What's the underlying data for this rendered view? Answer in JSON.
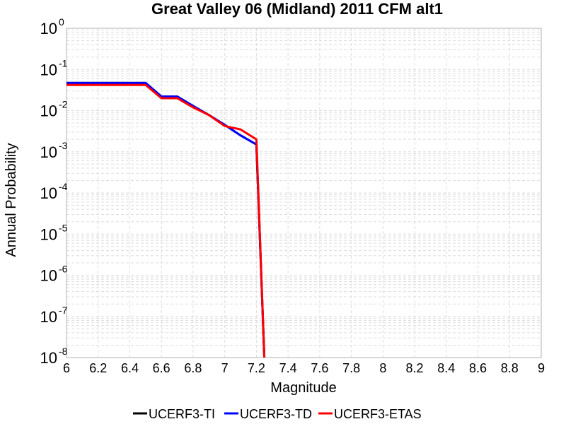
{
  "chart_data": {
    "type": "line",
    "title": "Great Valley 06 (Midland) 2011 CFM alt1",
    "xlabel": "Magnitude",
    "ylabel": "Annual Probability",
    "xlim": [
      6,
      9
    ],
    "ylim": [
      1e-08,
      1
    ],
    "yscale": "log",
    "grid": true,
    "legend_position": "bottom",
    "x_ticks": [
      "6",
      "6.2",
      "6.4",
      "6.6",
      "6.8",
      "7",
      "7.2",
      "7.4",
      "7.6",
      "7.8",
      "8",
      "8.2",
      "8.4",
      "8.6",
      "8.8",
      "9"
    ],
    "y_ticks": [
      {
        "base": "10",
        "exp": "0"
      },
      {
        "base": "10",
        "exp": "-1"
      },
      {
        "base": "10",
        "exp": "-2"
      },
      {
        "base": "10",
        "exp": "-3"
      },
      {
        "base": "10",
        "exp": "-4"
      },
      {
        "base": "10",
        "exp": "-5"
      },
      {
        "base": "10",
        "exp": "-6"
      },
      {
        "base": "10",
        "exp": "-7"
      },
      {
        "base": "10",
        "exp": "-8"
      }
    ],
    "series": [
      {
        "name": "UCERF3-TI",
        "color": "#000000",
        "x": [
          6.0,
          6.1,
          6.2,
          6.3,
          6.4,
          6.5,
          6.6,
          6.7,
          6.8,
          6.9,
          7.0,
          7.1,
          7.2,
          7.25
        ],
        "y": [
          0.047,
          0.047,
          0.047,
          0.047,
          0.047,
          0.047,
          0.022,
          0.022,
          0.013,
          0.0078,
          0.0045,
          0.0025,
          0.0015,
          1e-08
        ]
      },
      {
        "name": "UCERF3-TD",
        "color": "#0000ff",
        "x": [
          6.0,
          6.1,
          6.2,
          6.3,
          6.4,
          6.5,
          6.6,
          6.7,
          6.8,
          6.9,
          7.0,
          7.1,
          7.2,
          7.25
        ],
        "y": [
          0.047,
          0.047,
          0.047,
          0.047,
          0.047,
          0.047,
          0.022,
          0.022,
          0.013,
          0.0078,
          0.0045,
          0.0025,
          0.0015,
          1e-08
        ]
      },
      {
        "name": "UCERF3-ETAS",
        "color": "#ff0000",
        "x": [
          6.0,
          6.1,
          6.2,
          6.3,
          6.4,
          6.5,
          6.6,
          6.7,
          6.8,
          6.9,
          7.0,
          7.1,
          7.2,
          7.25
        ],
        "y": [
          0.042,
          0.042,
          0.042,
          0.042,
          0.042,
          0.042,
          0.02,
          0.02,
          0.012,
          0.0078,
          0.0042,
          0.0035,
          0.002,
          1e-08
        ]
      }
    ]
  }
}
